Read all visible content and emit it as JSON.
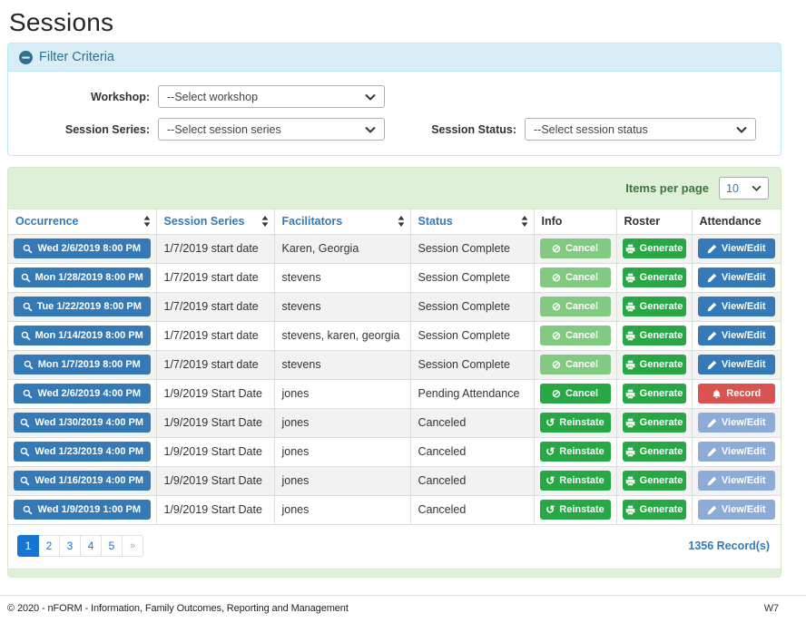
{
  "page_title": "Sessions",
  "filter": {
    "title": "Filter Criteria",
    "fields": [
      {
        "label": "Workshop:",
        "value": "--Select workshop"
      },
      {
        "label": "Session Series:",
        "value": "--Select session series"
      },
      {
        "label": "Session Status:",
        "value": "--Select session status"
      }
    ]
  },
  "table_panel": {
    "items_per_page_label": "Items per page",
    "items_per_page_value": "10",
    "columns": [
      {
        "label": "Occurrence",
        "sortable": true
      },
      {
        "label": "Session Series",
        "sortable": true
      },
      {
        "label": "Facilitators",
        "sortable": true
      },
      {
        "label": "Status",
        "sortable": true
      },
      {
        "label": "Info",
        "sortable": false
      },
      {
        "label": "Roster",
        "sortable": false
      },
      {
        "label": "Attendance",
        "sortable": false
      }
    ],
    "rows": [
      {
        "occurrence": "Wed 2/6/2019 8:00 PM",
        "session_series": "1/7/2019 start date",
        "facilitators": "Karen, Georgia",
        "status": "Session Complete",
        "info": {
          "label": "Cancel",
          "enabled": false
        },
        "roster": {
          "label": "Generate"
        },
        "attendance": {
          "label": "View/Edit",
          "variant": "blue"
        }
      },
      {
        "occurrence": "Mon 1/28/2019 8:00 PM",
        "session_series": "1/7/2019 start date",
        "facilitators": "stevens",
        "status": "Session Complete",
        "info": {
          "label": "Cancel",
          "enabled": false
        },
        "roster": {
          "label": "Generate"
        },
        "attendance": {
          "label": "View/Edit",
          "variant": "blue"
        }
      },
      {
        "occurrence": "Tue 1/22/2019 8:00 PM",
        "session_series": "1/7/2019 start date",
        "facilitators": "stevens",
        "status": "Session Complete",
        "info": {
          "label": "Cancel",
          "enabled": false
        },
        "roster": {
          "label": "Generate"
        },
        "attendance": {
          "label": "View/Edit",
          "variant": "blue"
        }
      },
      {
        "occurrence": "Mon 1/14/2019 8:00 PM",
        "session_series": "1/7/2019 start date",
        "facilitators": "stevens, karen, georgia",
        "status": "Session Complete",
        "info": {
          "label": "Cancel",
          "enabled": false
        },
        "roster": {
          "label": "Generate"
        },
        "attendance": {
          "label": "View/Edit",
          "variant": "blue"
        }
      },
      {
        "occurrence": "Mon 1/7/2019 8:00 PM",
        "session_series": "1/7/2019 start date",
        "facilitators": "stevens",
        "status": "Session Complete",
        "info": {
          "label": "Cancel",
          "enabled": false
        },
        "roster": {
          "label": "Generate"
        },
        "attendance": {
          "label": "View/Edit",
          "variant": "blue"
        }
      },
      {
        "occurrence": "Wed 2/6/2019 4:00 PM",
        "session_series": "1/9/2019 Start Date",
        "facilitators": "jones",
        "status": "Pending Attendance",
        "info": {
          "label": "Cancel",
          "enabled": true
        },
        "roster": {
          "label": "Generate"
        },
        "attendance": {
          "label": "Record",
          "variant": "red"
        }
      },
      {
        "occurrence": "Wed 1/30/2019 4:00 PM",
        "session_series": "1/9/2019 Start Date",
        "facilitators": "jones",
        "status": "Canceled",
        "info": {
          "label": "Reinstate",
          "enabled": true
        },
        "roster": {
          "label": "Generate"
        },
        "attendance": {
          "label": "View/Edit",
          "variant": "blue-disabled"
        }
      },
      {
        "occurrence": "Wed 1/23/2019 4:00 PM",
        "session_series": "1/9/2019 Start Date",
        "facilitators": "jones",
        "status": "Canceled",
        "info": {
          "label": "Reinstate",
          "enabled": true
        },
        "roster": {
          "label": "Generate"
        },
        "attendance": {
          "label": "View/Edit",
          "variant": "blue-disabled"
        }
      },
      {
        "occurrence": "Wed 1/16/2019 4:00 PM",
        "session_series": "1/9/2019 Start Date",
        "facilitators": "jones",
        "status": "Canceled",
        "info": {
          "label": "Reinstate",
          "enabled": true
        },
        "roster": {
          "label": "Generate"
        },
        "attendance": {
          "label": "View/Edit",
          "variant": "blue-disabled"
        }
      },
      {
        "occurrence": "Wed 1/9/2019 1:00 PM",
        "session_series": "1/9/2019 Start Date",
        "facilitators": "jones",
        "status": "Canceled",
        "info": {
          "label": "Reinstate",
          "enabled": true
        },
        "roster": {
          "label": "Generate"
        },
        "attendance": {
          "label": "View/Edit",
          "variant": "blue-disabled"
        }
      }
    ],
    "pagination": [
      "1",
      "2",
      "3",
      "4",
      "5",
      "»"
    ],
    "active_page": "1",
    "record_count": "1356 Record(s)"
  },
  "footer": {
    "copyright": "© 2020 - nFORM - Information, Family Outcomes, Reporting and Management",
    "version": "W7"
  },
  "icons": {
    "collapse": "minus-circle-icon",
    "select_chevron": "chevron-down-icon",
    "sort": "sort-icon",
    "occurrence": "search-icon",
    "cancel": "ban-icon",
    "cancel_glyph": "⊘",
    "reinstate": "undo-icon",
    "reinstate_glyph": "↺",
    "generate": "printer-icon",
    "view_edit": "pencil-icon",
    "record": "bell-icon"
  },
  "colors": {
    "accent_blue": "#337ab7",
    "blue_disabled": "#8cabd6",
    "success_green": "#28a745",
    "success_green_disabled": "#82c982",
    "danger_red": "#d9534f",
    "filter_header_bg": "#d9edf7",
    "filter_header_text": "#31708f",
    "filter_border": "#bce8f1",
    "panel_green_bg": "#dff0d8",
    "panel_green_border": "#d6e9c6",
    "panel_green_text": "#3c763d",
    "active_page_blue": "#1575d3",
    "row_stripe": "#f2f2f2"
  }
}
